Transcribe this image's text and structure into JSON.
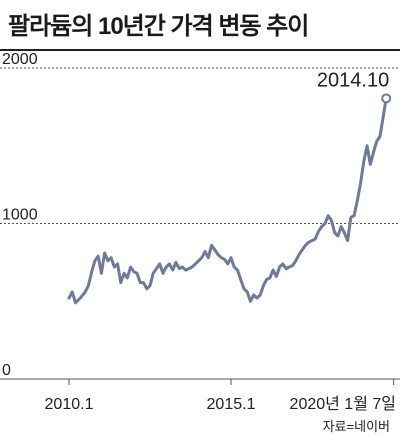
{
  "header": {
    "title": "팔라듐의 10년간 가격 변동 추이"
  },
  "footer": {
    "source": "자료=네이버"
  },
  "colors": {
    "line": "#6e7a9a",
    "axis": "#555555",
    "grid": "#555555",
    "text": "#222222"
  },
  "chart_data": {
    "type": "line",
    "title": "팔라듐의 10년간 가격 변동 추이",
    "xlabel": "",
    "ylabel": "",
    "ylim": [
      0,
      2000
    ],
    "y_ticks": [
      {
        "value": 0,
        "label": "0"
      },
      {
        "value": 1000,
        "label": "1000"
      },
      {
        "value": 2000,
        "label": "2000"
      }
    ],
    "x_ticks": [
      {
        "x": 2010.0,
        "label": "2010.1"
      },
      {
        "x": 2015.0,
        "label": "2015.1"
      },
      {
        "x": 2020.02,
        "label": "2020년 1월 7일"
      }
    ],
    "grid": "dashed horizontal at 1000 and 2000",
    "annotation": {
      "x": 2019.79,
      "y": 1805,
      "label": "2014.10"
    },
    "series": [
      {
        "x": [
          2010.0,
          2010.1,
          2010.2,
          2010.35,
          2010.5,
          2010.6,
          2010.7,
          2010.8,
          2010.9,
          2011.0,
          2011.1,
          2011.2,
          2011.3,
          2011.4,
          2011.5,
          2011.6,
          2011.7,
          2011.8,
          2011.9,
          2012.0,
          2012.1,
          2012.2,
          2012.3,
          2012.4,
          2012.5,
          2012.6,
          2012.7,
          2012.8,
          2012.9,
          2013.0,
          2013.1,
          2013.2,
          2013.3,
          2013.4,
          2013.5,
          2013.6,
          2013.7,
          2013.8,
          2013.9,
          2014.0,
          2014.1,
          2014.2,
          2014.3,
          2014.4,
          2014.5,
          2014.6,
          2014.7,
          2014.8,
          2014.9,
          2015.0,
          2015.1,
          2015.2,
          2015.3,
          2015.4,
          2015.5,
          2015.6,
          2015.7,
          2015.8,
          2015.9,
          2016.0,
          2016.1,
          2016.2,
          2016.3,
          2016.4,
          2016.5,
          2016.6,
          2016.7,
          2016.8,
          2016.9,
          2017.0,
          2017.1,
          2017.2,
          2017.3,
          2017.4,
          2017.5,
          2017.6,
          2017.7,
          2017.8,
          2017.9,
          2018.0,
          2018.1,
          2018.2,
          2018.3,
          2018.4,
          2018.5,
          2018.6,
          2018.7,
          2018.8,
          2018.9,
          2019.0,
          2019.1,
          2019.2,
          2019.3,
          2019.4,
          2019.5,
          2019.6,
          2019.7,
          2019.79
        ],
        "y": [
          520,
          560,
          490,
          520,
          560,
          600,
          690,
          760,
          790,
          680,
          810,
          760,
          780,
          720,
          740,
          620,
          680,
          650,
          720,
          690,
          680,
          620,
          620,
          580,
          600,
          680,
          710,
          740,
          680,
          720,
          740,
          700,
          750,
          710,
          720,
          700,
          710,
          720,
          740,
          760,
          780,
          820,
          780,
          860,
          830,
          800,
          780,
          770,
          740,
          780,
          720,
          700,
          640,
          580,
          560,
          500,
          540,
          520,
          540,
          600,
          640,
          650,
          700,
          660,
          720,
          740,
          710,
          720,
          730,
          760,
          800,
          830,
          860,
          880,
          890,
          900,
          950,
          980,
          1000,
          1050,
          1020,
          940,
          920,
          980,
          940,
          890,
          1040,
          1050,
          1150,
          1260,
          1400,
          1500,
          1380,
          1460,
          1530,
          1560,
          1690,
          1805
        ]
      }
    ]
  }
}
